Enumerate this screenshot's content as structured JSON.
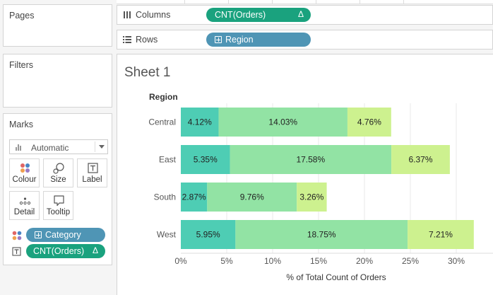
{
  "panels": {
    "pages": "Pages",
    "filters": "Filters",
    "marks": "Marks"
  },
  "marks": {
    "type": "Automatic",
    "buttons": {
      "colour": "Colour",
      "size": "Size",
      "label": "Label",
      "detail": "Detail",
      "tooltip": "Tooltip"
    },
    "fields": [
      {
        "label": "Category",
        "kind": "dimension"
      },
      {
        "label": "CNT(Orders)",
        "kind": "measure",
        "suffix": "Δ"
      }
    ]
  },
  "shelves": {
    "columns": {
      "label": "Columns",
      "pill": "CNT(Orders)",
      "pill_suffix": "Δ"
    },
    "rows": {
      "label": "Rows",
      "pill": "Region"
    }
  },
  "sheet": {
    "title": "Sheet 1"
  },
  "chart_data": {
    "type": "bar",
    "orientation": "horizontal",
    "stacked": true,
    "row_header": "Region",
    "categories": [
      "Central",
      "East",
      "South",
      "West"
    ],
    "series": [
      {
        "values": [
          4.12,
          5.35,
          2.87,
          5.95
        ],
        "labels": [
          "4.12%",
          "5.35%",
          "2.87%",
          "5.95%"
        ],
        "color": "#4ecdb4"
      },
      {
        "values": [
          14.03,
          17.58,
          9.76,
          18.75
        ],
        "labels": [
          "14.03%",
          "17.58%",
          "9.76%",
          "18.75%"
        ],
        "color": "#92e3a4"
      },
      {
        "values": [
          4.76,
          6.37,
          3.26,
          7.21
        ],
        "labels": [
          "4.76%",
          "6.37%",
          "3.26%",
          "7.21%"
        ],
        "color": "#cdf18f"
      }
    ],
    "xlabel": "% of Total Count of Orders",
    "xlim": [
      0,
      32
    ],
    "xticks": [
      0,
      5,
      10,
      15,
      20,
      25,
      30
    ],
    "xtick_labels": [
      "0%",
      "5%",
      "10%",
      "15%",
      "20%",
      "25%",
      "30%"
    ],
    "grid": true
  }
}
